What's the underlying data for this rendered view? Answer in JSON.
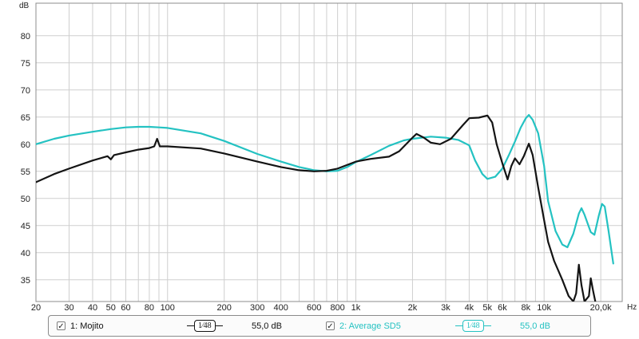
{
  "chart_data": {
    "type": "line",
    "ylabel": "dB",
    "xlabel": "Hz",
    "x_scale": "log",
    "xlim": [
      20,
      26000
    ],
    "ylim": [
      31,
      86
    ],
    "y_ticks": [
      35,
      40,
      45,
      50,
      55,
      60,
      65,
      70,
      75,
      80
    ],
    "x_ticks": [
      {
        "value": 20,
        "label": "20"
      },
      {
        "value": 30,
        "label": "30"
      },
      {
        "value": 40,
        "label": "40"
      },
      {
        "value": 50,
        "label": "50"
      },
      {
        "value": 60,
        "label": "60"
      },
      {
        "value": 80,
        "label": "80"
      },
      {
        "value": 100,
        "label": "100"
      },
      {
        "value": 200,
        "label": "200"
      },
      {
        "value": 300,
        "label": "300"
      },
      {
        "value": 400,
        "label": "400"
      },
      {
        "value": 600,
        "label": "600"
      },
      {
        "value": 800,
        "label": "800"
      },
      {
        "value": 1000,
        "label": "1k"
      },
      {
        "value": 2000,
        "label": "2k"
      },
      {
        "value": 3000,
        "label": "3k"
      },
      {
        "value": 4000,
        "label": "4k"
      },
      {
        "value": 5000,
        "label": "5k"
      },
      {
        "value": 6000,
        "label": "6k"
      },
      {
        "value": 8000,
        "label": "8k"
      },
      {
        "value": 10000,
        "label": "10k"
      },
      {
        "value": 20000,
        "label": "20,0k"
      }
    ],
    "grid": true,
    "series": [
      {
        "name": "1: Mojito",
        "color": "#141414",
        "points": [
          [
            20,
            53.0
          ],
          [
            25,
            54.5
          ],
          [
            30,
            55.5
          ],
          [
            40,
            57.0
          ],
          [
            48,
            57.8
          ],
          [
            50,
            57.2
          ],
          [
            52,
            58.0
          ],
          [
            60,
            58.5
          ],
          [
            70,
            59.0
          ],
          [
            80,
            59.3
          ],
          [
            85,
            59.6
          ],
          [
            88,
            61.0
          ],
          [
            91,
            59.6
          ],
          [
            100,
            59.6
          ],
          [
            150,
            59.2
          ],
          [
            200,
            58.3
          ],
          [
            300,
            56.8
          ],
          [
            400,
            55.8
          ],
          [
            500,
            55.2
          ],
          [
            600,
            55.0
          ],
          [
            700,
            55.1
          ],
          [
            800,
            55.5
          ],
          [
            1000,
            56.8
          ],
          [
            1200,
            57.3
          ],
          [
            1500,
            57.7
          ],
          [
            1700,
            58.7
          ],
          [
            2000,
            61.2
          ],
          [
            2100,
            61.9
          ],
          [
            2300,
            61.2
          ],
          [
            2500,
            60.3
          ],
          [
            2800,
            60.0
          ],
          [
            3200,
            61.0
          ],
          [
            3700,
            63.5
          ],
          [
            4000,
            64.8
          ],
          [
            4500,
            64.9
          ],
          [
            5000,
            65.3
          ],
          [
            5300,
            64.0
          ],
          [
            5600,
            60.0
          ],
          [
            6000,
            56.5
          ],
          [
            6400,
            53.5
          ],
          [
            6700,
            56.0
          ],
          [
            7000,
            57.4
          ],
          [
            7400,
            56.3
          ],
          [
            7800,
            57.8
          ],
          [
            8300,
            60.1
          ],
          [
            8700,
            58.0
          ],
          [
            9300,
            52.0
          ],
          [
            10000,
            46.0
          ],
          [
            10500,
            42.0
          ],
          [
            11300,
            38.5
          ],
          [
            12500,
            35.0
          ],
          [
            13500,
            32.0
          ],
          [
            14300,
            31.0
          ],
          [
            14800,
            32.5
          ],
          [
            15300,
            37.8
          ],
          [
            15800,
            34.0
          ],
          [
            16400,
            31.0
          ],
          [
            17300,
            32.0
          ],
          [
            17700,
            35.3
          ],
          [
            18200,
            33.0
          ],
          [
            18700,
            31.0
          ]
        ]
      },
      {
        "name": "2: Average SD5",
        "color": "#24c2c2",
        "points": [
          [
            20,
            60.0
          ],
          [
            25,
            61.0
          ],
          [
            30,
            61.6
          ],
          [
            40,
            62.3
          ],
          [
            50,
            62.8
          ],
          [
            60,
            63.1
          ],
          [
            70,
            63.2
          ],
          [
            80,
            63.2
          ],
          [
            90,
            63.1
          ],
          [
            100,
            63.0
          ],
          [
            150,
            62.0
          ],
          [
            200,
            60.6
          ],
          [
            300,
            58.2
          ],
          [
            400,
            56.8
          ],
          [
            500,
            55.8
          ],
          [
            600,
            55.2
          ],
          [
            700,
            55.0
          ],
          [
            800,
            55.1
          ],
          [
            900,
            55.8
          ],
          [
            1000,
            56.7
          ],
          [
            1200,
            58.0
          ],
          [
            1500,
            59.7
          ],
          [
            1800,
            60.7
          ],
          [
            2000,
            61.0
          ],
          [
            2500,
            61.4
          ],
          [
            3000,
            61.2
          ],
          [
            3500,
            60.8
          ],
          [
            4000,
            59.8
          ],
          [
            4300,
            57.0
          ],
          [
            4700,
            54.5
          ],
          [
            5000,
            53.6
          ],
          [
            5500,
            54.0
          ],
          [
            6000,
            55.5
          ],
          [
            6500,
            58.0
          ],
          [
            7000,
            60.5
          ],
          [
            7500,
            63.0
          ],
          [
            8000,
            64.8
          ],
          [
            8300,
            65.4
          ],
          [
            8700,
            64.5
          ],
          [
            9300,
            62.0
          ],
          [
            10000,
            56.0
          ],
          [
            10500,
            49.5
          ],
          [
            11500,
            44.0
          ],
          [
            12500,
            41.5
          ],
          [
            13300,
            41.0
          ],
          [
            14300,
            43.5
          ],
          [
            15300,
            47.2
          ],
          [
            15800,
            48.2
          ],
          [
            16400,
            47.0
          ],
          [
            17700,
            43.8
          ],
          [
            18500,
            43.3
          ],
          [
            19500,
            46.8
          ],
          [
            20300,
            49.0
          ],
          [
            21000,
            48.5
          ],
          [
            22000,
            44.0
          ],
          [
            23300,
            38.0
          ]
        ]
      }
    ]
  },
  "legend": [
    {
      "checkbox": "✓",
      "label": "1: Mojito",
      "smoothing_num": "1",
      "smoothing_den": "48",
      "level": "55,0 dB",
      "color": "#141414"
    },
    {
      "checkbox": "✓",
      "label": "2: Average SD5",
      "smoothing_num": "1",
      "smoothing_den": "48",
      "level": "55,0 dB",
      "color": "#24c2c2"
    }
  ]
}
